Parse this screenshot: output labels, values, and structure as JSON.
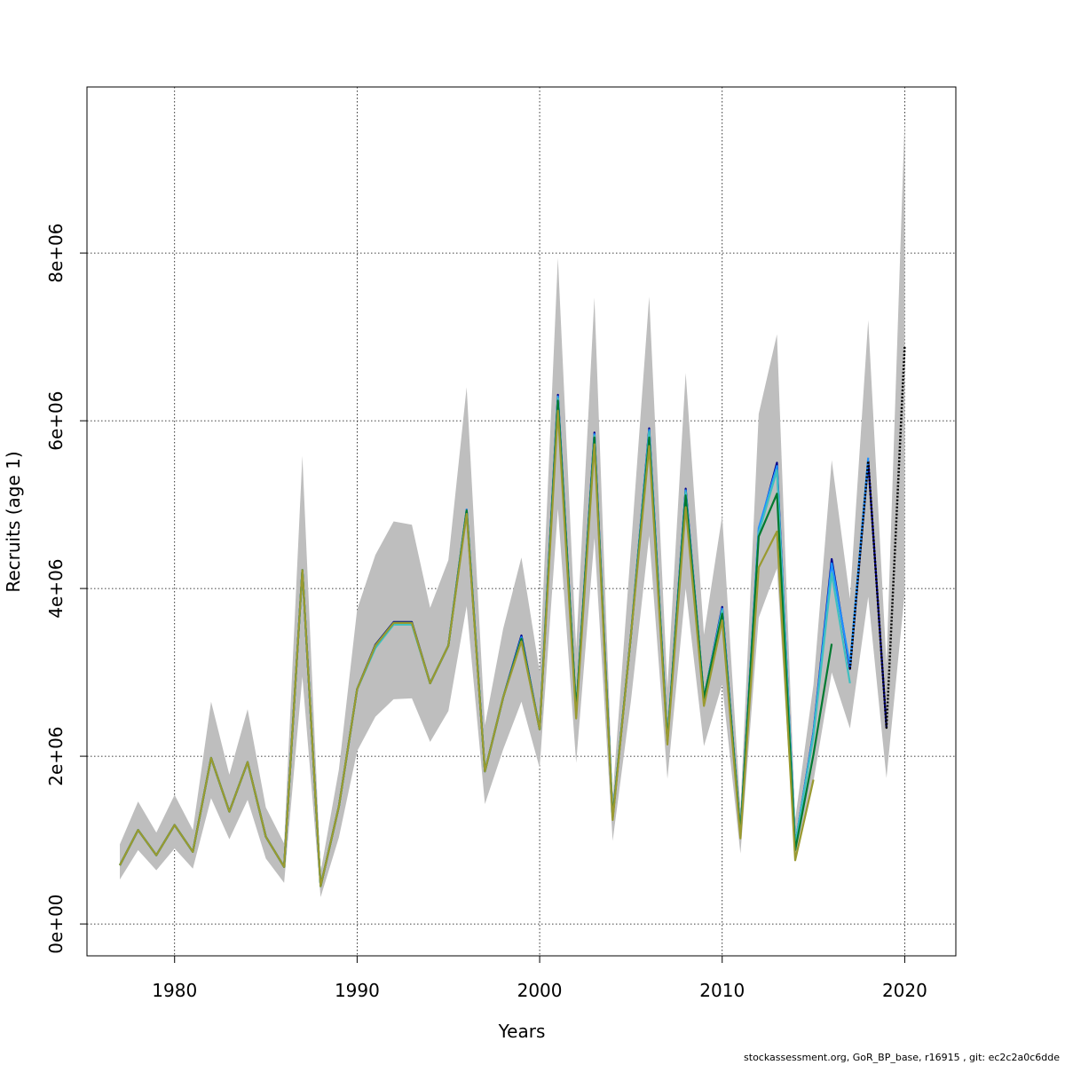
{
  "chart_data": {
    "type": "line",
    "title": "",
    "xlabel": "Years",
    "ylabel": "Recruits (age 1)",
    "xlim": [
      1975.2,
      2022.8
    ],
    "ylim": [
      -380000,
      9980000
    ],
    "x_ticks": [
      1980,
      1990,
      2000,
      2010,
      2020
    ],
    "x_tick_labels": [
      "1980",
      "1990",
      "2000",
      "2010",
      "2020"
    ],
    "y_ticks": [
      0,
      2000000,
      4000000,
      6000000,
      8000000
    ],
    "y_tick_labels": [
      "0e+00",
      "2e+06",
      "4e+06",
      "6e+06",
      "8e+06"
    ],
    "grid": true,
    "legend": "none",
    "band": {
      "color": "#bebebe",
      "x": [
        1977,
        1978,
        1979,
        1980,
        1981,
        1982,
        1983,
        1984,
        1985,
        1986,
        1987,
        1988,
        1989,
        1990,
        1991,
        1992,
        1993,
        1994,
        1995,
        1996,
        1997,
        1998,
        1999,
        2000,
        2001,
        2002,
        2003,
        2004,
        2005,
        2006,
        2007,
        2008,
        2009,
        2010,
        2011,
        2012,
        2013,
        2014,
        2015,
        2016,
        2017,
        2018,
        2019,
        2020
      ],
      "upper": [
        950000,
        1460000,
        1090000,
        1540000,
        1120000,
        2650000,
        1780000,
        2560000,
        1390000,
        960000,
        5580000,
        620000,
        1840000,
        3750000,
        4400000,
        4800000,
        4760000,
        3770000,
        4340000,
        6400000,
        2370000,
        3520000,
        4370000,
        3010000,
        7940000,
        3280000,
        7470000,
        1530000,
        4480000,
        7480000,
        2810000,
        6570000,
        3450000,
        4870000,
        1380000,
        6080000,
        7030000,
        1250000,
        2850000,
        5530000,
        3880000,
        7200000,
        3100000,
        9600000
      ],
      "lower": [
        530000,
        880000,
        640000,
        900000,
        660000,
        1500000,
        1010000,
        1480000,
        780000,
        490000,
        2950000,
        320000,
        1030000,
        2060000,
        2470000,
        2680000,
        2690000,
        2170000,
        2540000,
        3790000,
        1430000,
        2080000,
        2650000,
        1860000,
        4950000,
        1920000,
        4600000,
        990000,
        2660000,
        4630000,
        1730000,
        4000000,
        2120000,
        2860000,
        840000,
        3650000,
        4240000,
        740000,
        1700000,
        3000000,
        2330000,
        3900000,
        1740000,
        3950000
      ]
    },
    "series": [
      {
        "color": "#00008b",
        "x": [
          1977,
          1978,
          1979,
          1980,
          1981,
          1982,
          1983,
          1984,
          1985,
          1986,
          1987,
          1988,
          1989,
          1990,
          1991,
          1992,
          1993,
          1994,
          1995,
          1996,
          1997,
          1998,
          1999,
          2000,
          2001,
          2002,
          2003,
          2004,
          2005,
          2006,
          2007,
          2008,
          2009,
          2010,
          2011,
          2012,
          2013,
          2014,
          2015,
          2016,
          2017,
          2018,
          2019
        ],
        "values": [
          700000,
          1120000,
          820000,
          1180000,
          860000,
          1980000,
          1340000,
          1930000,
          1040000,
          680000,
          4220000,
          450000,
          1400000,
          2800000,
          3330000,
          3600000,
          3600000,
          2870000,
          3320000,
          4940000,
          1820000,
          2700000,
          3440000,
          2320000,
          6310000,
          2540000,
          5860000,
          1270000,
          3440000,
          5910000,
          2180000,
          5190000,
          2690000,
          3780000,
          1080000,
          4690000,
          5500000,
          940000,
          2290000,
          4350000,
          3040000,
          5520000,
          2340000
        ]
      },
      {
        "color": "#1e90ff",
        "x": [
          1977,
          1978,
          1979,
          1980,
          1981,
          1982,
          1983,
          1984,
          1985,
          1986,
          1987,
          1988,
          1989,
          1990,
          1991,
          1992,
          1993,
          1994,
          1995,
          1996,
          1997,
          1998,
          1999,
          2000,
          2001,
          2002,
          2003,
          2004,
          2005,
          2006,
          2007,
          2008,
          2009,
          2010,
          2011,
          2012,
          2013,
          2014,
          2015,
          2016,
          2017,
          2018
        ],
        "values": [
          700000,
          1120000,
          820000,
          1180000,
          860000,
          1980000,
          1340000,
          1930000,
          1040000,
          680000,
          4220000,
          450000,
          1400000,
          2800000,
          3300000,
          3580000,
          3580000,
          2870000,
          3320000,
          4940000,
          1820000,
          2700000,
          3420000,
          2320000,
          6290000,
          2540000,
          5840000,
          1270000,
          3440000,
          5890000,
          2180000,
          5170000,
          2690000,
          3760000,
          1080000,
          4720000,
          5460000,
          940000,
          2280000,
          4300000,
          3080000,
          5560000
        ]
      },
      {
        "color": "#40c0c0",
        "x": [
          1977,
          1978,
          1979,
          1980,
          1981,
          1982,
          1983,
          1984,
          1985,
          1986,
          1987,
          1988,
          1989,
          1990,
          1991,
          1992,
          1993,
          1994,
          1995,
          1996,
          1997,
          1998,
          1999,
          2000,
          2001,
          2002,
          2003,
          2004,
          2005,
          2006,
          2007,
          2008,
          2009,
          2010,
          2011,
          2012,
          2013,
          2014,
          2015,
          2016,
          2017
        ],
        "values": [
          700000,
          1120000,
          820000,
          1180000,
          860000,
          1980000,
          1340000,
          1930000,
          1040000,
          680000,
          4220000,
          450000,
          1400000,
          2800000,
          3290000,
          3570000,
          3570000,
          2870000,
          3320000,
          4930000,
          1820000,
          2700000,
          3400000,
          2320000,
          6270000,
          2540000,
          5820000,
          1270000,
          3440000,
          5870000,
          2180000,
          5150000,
          2690000,
          3740000,
          1080000,
          4660000,
          5410000,
          940000,
          2240000,
          4180000,
          2870000
        ]
      },
      {
        "color": "#007a30",
        "x": [
          1977,
          1978,
          1979,
          1980,
          1981,
          1982,
          1983,
          1984,
          1985,
          1986,
          1987,
          1988,
          1989,
          1990,
          1991,
          1992,
          1993,
          1994,
          1995,
          1996,
          1997,
          1998,
          1999,
          2000,
          2001,
          2002,
          2003,
          2004,
          2005,
          2006,
          2007,
          2008,
          2009,
          2010,
          2011,
          2012,
          2013,
          2014,
          2015,
          2016
        ],
        "values": [
          700000,
          1120000,
          820000,
          1180000,
          860000,
          1980000,
          1340000,
          1930000,
          1040000,
          680000,
          4220000,
          450000,
          1400000,
          2800000,
          3320000,
          3590000,
          3590000,
          2870000,
          3320000,
          4930000,
          1820000,
          2700000,
          3400000,
          2320000,
          6240000,
          2540000,
          5800000,
          1270000,
          3440000,
          5800000,
          2180000,
          5110000,
          2690000,
          3700000,
          1080000,
          4620000,
          5130000,
          880000,
          2020000,
          3340000
        ]
      },
      {
        "color": "#9a9a30",
        "x": [
          1977,
          1978,
          1979,
          1980,
          1981,
          1982,
          1983,
          1984,
          1985,
          1986,
          1987,
          1988,
          1989,
          1990,
          1991,
          1992,
          1993,
          1994,
          1995,
          1996,
          1997,
          1998,
          1999,
          2000,
          2001,
          2002,
          2003,
          2004,
          2005,
          2006,
          2007,
          2008,
          2009,
          2010,
          2011,
          2012,
          2013,
          2014,
          2015
        ],
        "values": [
          700000,
          1120000,
          820000,
          1180000,
          860000,
          1980000,
          1340000,
          1930000,
          1040000,
          680000,
          4220000,
          450000,
          1400000,
          2800000,
          3320000,
          3590000,
          3590000,
          2870000,
          3320000,
          4890000,
          1820000,
          2700000,
          3370000,
          2320000,
          6120000,
          2450000,
          5720000,
          1240000,
          3440000,
          5700000,
          2140000,
          4970000,
          2600000,
          3620000,
          1020000,
          4250000,
          4680000,
          760000,
          1720000
        ]
      },
      {
        "color": "#000000",
        "dotted": true,
        "x": [
          2017,
          2018,
          2019,
          2020
        ],
        "values": [
          3040000,
          5520000,
          2340000,
          6900000
        ]
      }
    ]
  },
  "footer": {
    "credit": "stockassessment.org, GoR_BP_base, r16915 , git: ec2c2a0c6dde"
  }
}
